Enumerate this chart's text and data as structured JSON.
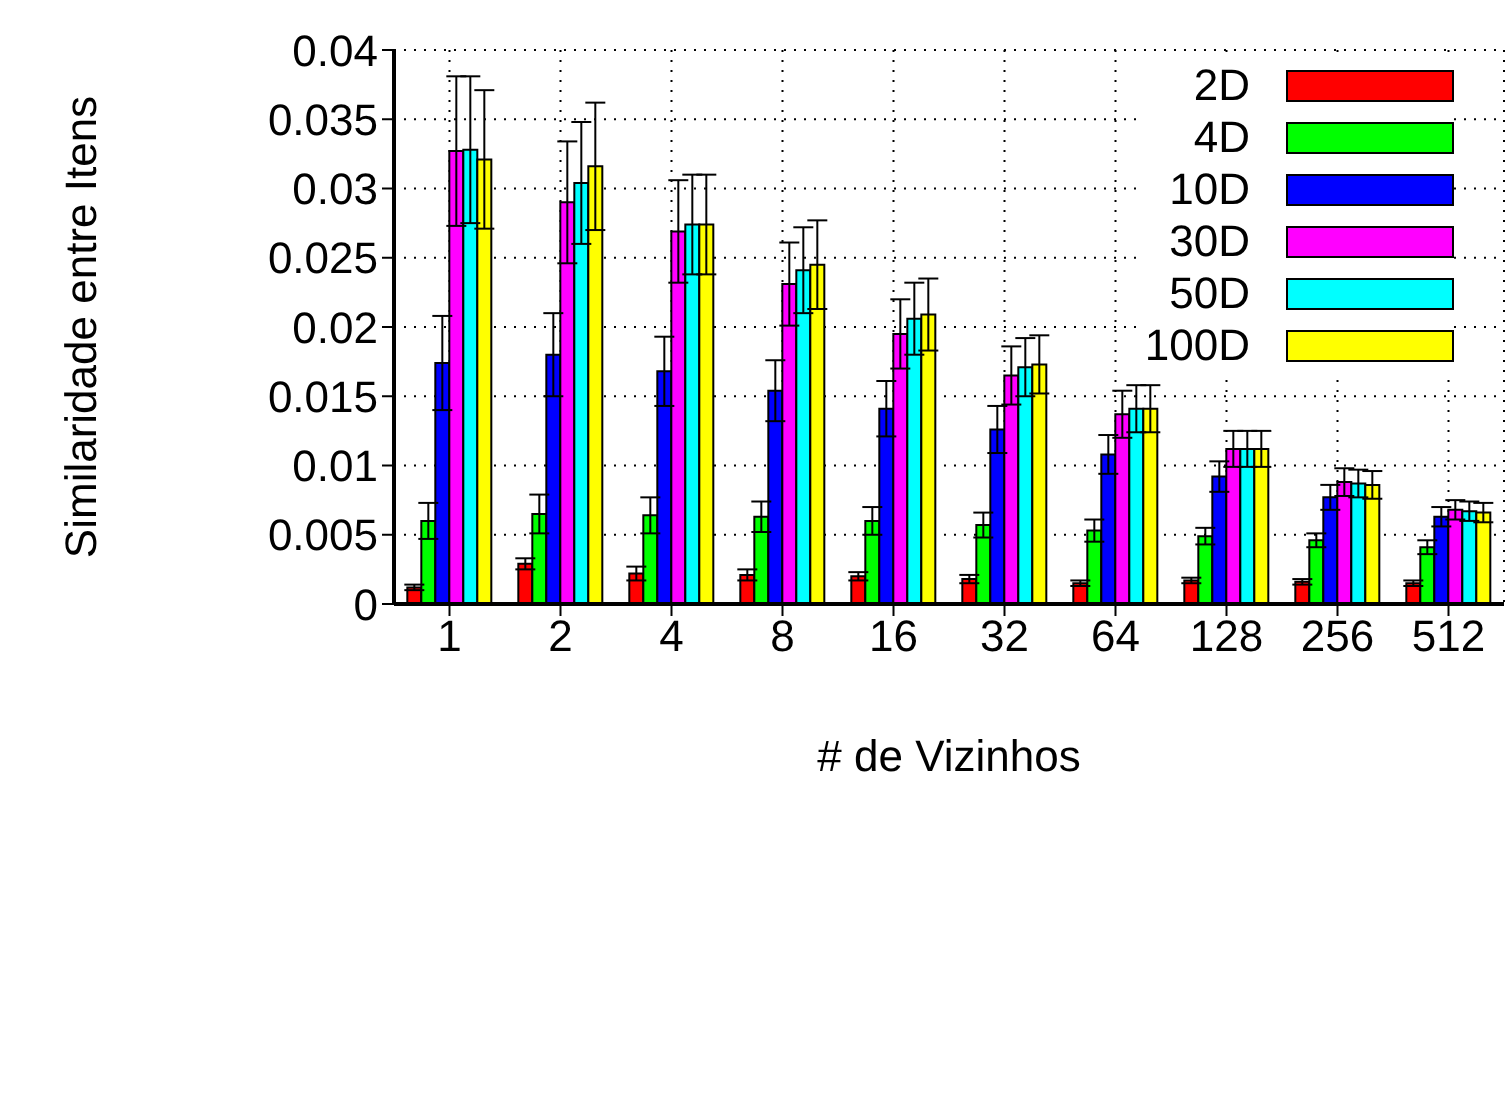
{
  "chart_data": {
    "type": "bar",
    "xlabel": "# de Vizinhos",
    "ylabel": "Similaridade entre Itens",
    "categories": [
      "1",
      "2",
      "4",
      "8",
      "16",
      "32",
      "64",
      "128",
      "256",
      "512"
    ],
    "series": [
      {
        "name": "2D",
        "color": "#ff0000",
        "values": [
          0.0012,
          0.0029,
          0.0022,
          0.0021,
          0.002,
          0.0018,
          0.0015,
          0.0017,
          0.0016,
          0.0015
        ],
        "errors": [
          0.0002,
          0.0004,
          0.0005,
          0.0004,
          0.0003,
          0.0003,
          0.0002,
          0.0002,
          0.0002,
          0.0002
        ]
      },
      {
        "name": "4D",
        "color": "#00ff00",
        "values": [
          0.006,
          0.0065,
          0.0064,
          0.0063,
          0.006,
          0.0057,
          0.0053,
          0.0049,
          0.0046,
          0.0041
        ],
        "errors": [
          0.0013,
          0.0014,
          0.0013,
          0.0011,
          0.001,
          0.0009,
          0.0008,
          0.0006,
          0.0005,
          0.0005
        ]
      },
      {
        "name": "10D",
        "color": "#0000ff",
        "values": [
          0.0174,
          0.018,
          0.0168,
          0.0154,
          0.0141,
          0.0126,
          0.0108,
          0.0092,
          0.0077,
          0.0063
        ],
        "errors": [
          0.0034,
          0.003,
          0.0025,
          0.0022,
          0.002,
          0.0017,
          0.0014,
          0.0011,
          0.0009,
          0.0007
        ]
      },
      {
        "name": "30D",
        "color": "#ff00ff",
        "values": [
          0.0327,
          0.029,
          0.0269,
          0.0231,
          0.0195,
          0.0165,
          0.0137,
          0.0112,
          0.0088,
          0.0068
        ],
        "errors": [
          0.0054,
          0.0044,
          0.0037,
          0.003,
          0.0025,
          0.0021,
          0.0017,
          0.0013,
          0.001,
          0.0007
        ]
      },
      {
        "name": "50D",
        "color": "#00ffff",
        "values": [
          0.0328,
          0.0304,
          0.0274,
          0.0241,
          0.0206,
          0.0171,
          0.0141,
          0.0112,
          0.0087,
          0.0067
        ],
        "errors": [
          0.0053,
          0.0044,
          0.0036,
          0.0031,
          0.0026,
          0.0021,
          0.0017,
          0.0013,
          0.001,
          0.0007
        ]
      },
      {
        "name": "100D",
        "color": "#ffff00",
        "values": [
          0.0321,
          0.0316,
          0.0274,
          0.0245,
          0.0209,
          0.0173,
          0.0141,
          0.0112,
          0.0086,
          0.0066
        ],
        "errors": [
          0.005,
          0.0046,
          0.0036,
          0.0032,
          0.0026,
          0.0021,
          0.0017,
          0.0013,
          0.001,
          0.0007
        ]
      }
    ],
    "ylim": [
      0,
      0.04
    ],
    "yticks": [
      0,
      0.005,
      0.01,
      0.015,
      0.02,
      0.025,
      0.03,
      0.035,
      0.04
    ],
    "grid": true,
    "legend": "top right"
  }
}
